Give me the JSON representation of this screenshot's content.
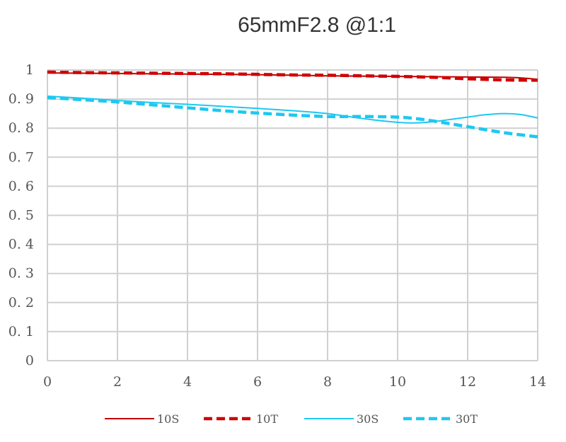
{
  "chart_data": {
    "type": "line",
    "title": "65mmF2.8 @1:1",
    "xlabel": "",
    "ylabel": "",
    "xlim": [
      0,
      14
    ],
    "ylim": [
      0,
      1
    ],
    "x_ticks": [
      0,
      2,
      4,
      6,
      8,
      10,
      12,
      14
    ],
    "y_ticks": [
      0,
      0.1,
      0.2,
      0.3,
      0.4,
      0.5,
      0.6,
      0.7,
      0.8,
      0.9,
      1
    ],
    "y_tick_labels": [
      "0",
      "0. 1",
      "0. 2",
      "0. 3",
      "0. 4",
      "0. 5",
      "0. 6",
      "0. 7",
      "0. 8",
      "0. 9",
      "1"
    ],
    "x_tick_labels": [
      "0",
      "2",
      "4",
      "6",
      "8",
      "10",
      "12",
      "14"
    ],
    "grid": true,
    "legend_position": "bottom",
    "series": [
      {
        "name": "10S",
        "color": "#c00000",
        "style": "solid",
        "x": [
          0,
          1,
          2,
          3,
          4,
          5,
          6,
          7,
          8,
          9,
          10,
          11,
          12,
          13,
          13.5,
          14
        ],
        "y": [
          0.99,
          0.989,
          0.988,
          0.987,
          0.986,
          0.985,
          0.984,
          0.982,
          0.98,
          0.979,
          0.978,
          0.977,
          0.976,
          0.975,
          0.973,
          0.968
        ]
      },
      {
        "name": "10T",
        "color": "#d00000",
        "style": "dashed",
        "x": [
          0,
          1,
          2,
          3,
          4,
          5,
          6,
          7,
          8,
          9,
          10,
          11,
          12,
          13,
          14
        ],
        "y": [
          0.993,
          0.991,
          0.99,
          0.989,
          0.988,
          0.987,
          0.985,
          0.983,
          0.982,
          0.98,
          0.978,
          0.975,
          0.97,
          0.966,
          0.965
        ]
      },
      {
        "name": "30S",
        "color": "#1ec8f0",
        "style": "solid",
        "x": [
          0,
          1,
          2,
          3,
          4,
          5,
          6,
          7,
          8,
          9,
          10,
          10.5,
          11,
          12,
          12.5,
          13,
          13.5,
          14
        ],
        "y": [
          0.91,
          0.903,
          0.895,
          0.888,
          0.882,
          0.875,
          0.868,
          0.86,
          0.85,
          0.833,
          0.82,
          0.818,
          0.822,
          0.838,
          0.846,
          0.85,
          0.847,
          0.835
        ]
      },
      {
        "name": "30T",
        "color": "#1ec8f0",
        "style": "dashed",
        "x": [
          0,
          1,
          2,
          3,
          4,
          5,
          6,
          7,
          8,
          9,
          10,
          10.5,
          11,
          12,
          13,
          14
        ],
        "y": [
          0.905,
          0.898,
          0.89,
          0.88,
          0.87,
          0.86,
          0.852,
          0.845,
          0.84,
          0.84,
          0.838,
          0.833,
          0.825,
          0.805,
          0.785,
          0.77
        ]
      }
    ]
  }
}
